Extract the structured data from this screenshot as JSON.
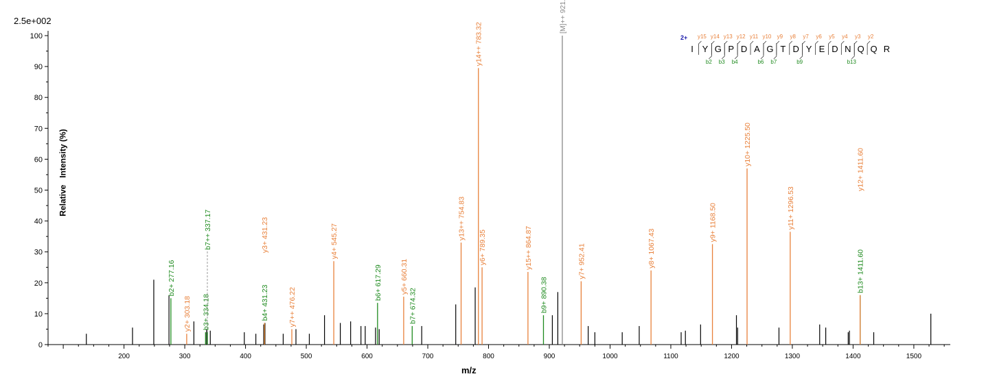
{
  "chart_data": {
    "type": "bar",
    "title": "",
    "scale_label": "2.5e+002",
    "xlabel": "m/z",
    "ylabel": "Relative   Intensity (%)",
    "xlim": [
      75,
      1560
    ],
    "ylim": [
      0,
      100
    ],
    "xticks": [
      200,
      300,
      400,
      500,
      600,
      700,
      800,
      900,
      1000,
      1100,
      1200,
      1300,
      1400,
      1500
    ],
    "yticks": [
      0,
      10,
      20,
      30,
      40,
      50,
      60,
      70,
      80,
      90,
      100
    ],
    "grid": false,
    "colors": {
      "y": "#E8803A",
      "b": "#1E8A1E",
      "precursor": "#888888",
      "other": "#000000",
      "charge": "#1A1AAA"
    },
    "peptide": {
      "charge": "2+",
      "sequence": [
        "I",
        "Y",
        "G",
        "P",
        "D",
        "A",
        "G",
        "T",
        "D",
        "Y",
        "E",
        "D",
        "N",
        "Q",
        "Q",
        "R"
      ],
      "y_ions": [
        "y15",
        "y14",
        "y13",
        "y12",
        "y11",
        "y10",
        "y9",
        "y8",
        "y7",
        "y6",
        "y5",
        "y4",
        "y3",
        "y2"
      ],
      "b_ions": [
        {
          "label": "b2",
          "pos": 2
        },
        {
          "label": "b3",
          "pos": 3
        },
        {
          "label": "b4",
          "pos": 4
        },
        {
          "label": "b6",
          "pos": 6
        },
        {
          "label": "b7",
          "pos": 7
        },
        {
          "label": "b9",
          "pos": 9
        },
        {
          "label": "b13",
          "pos": 13
        }
      ]
    },
    "annotated_peaks": [
      {
        "mz": 277.16,
        "intensity": 15,
        "label": "b2+ 277.16",
        "ion": "b"
      },
      {
        "mz": 303.18,
        "intensity": 3.5,
        "label": "y2+ 303.18",
        "ion": "y"
      },
      {
        "mz": 334.18,
        "intensity": 4,
        "label": "b3+ 334.18",
        "ion": "b"
      },
      {
        "mz": 337.17,
        "intensity": 4,
        "label": "b7++ 337.17",
        "ion": "b",
        "dashed": true,
        "label_top": 30
      },
      {
        "mz": 431.23,
        "intensity": 7,
        "label": "b4+ 431.23",
        "ion": "b"
      },
      {
        "mz": 431.23,
        "intensity": 7,
        "label": "y3+ 431.23",
        "ion": "y",
        "label_top": 29
      },
      {
        "mz": 476.22,
        "intensity": 5,
        "label": "y7++ 476.22",
        "ion": "y"
      },
      {
        "mz": 545.27,
        "intensity": 27,
        "label": "y4+ 545.27",
        "ion": "y"
      },
      {
        "mz": 617.29,
        "intensity": 13.5,
        "label": "b6+ 617.29",
        "ion": "b"
      },
      {
        "mz": 660.31,
        "intensity": 15.5,
        "label": "y5+ 660.31",
        "ion": "y"
      },
      {
        "mz": 674.32,
        "intensity": 6,
        "label": "b7+ 674.32",
        "ion": "b"
      },
      {
        "mz": 754.83,
        "intensity": 33,
        "label": "y13++ 754.83",
        "ion": "y"
      },
      {
        "mz": 783.32,
        "intensity": 89.5,
        "label": "y14++ 783.32",
        "ion": "y"
      },
      {
        "mz": 789.35,
        "intensity": 25,
        "label": "y6+ 789.35",
        "ion": "y"
      },
      {
        "mz": 864.87,
        "intensity": 23.5,
        "label": "y15++ 864.87",
        "ion": "y"
      },
      {
        "mz": 890.38,
        "intensity": 9.5,
        "label": "b9+ 890.38",
        "ion": "b"
      },
      {
        "mz": 921.41,
        "intensity": 100,
        "label": "[M]++ 921.41",
        "ion": "precursor"
      },
      {
        "mz": 952.41,
        "intensity": 20.5,
        "label": "y7+ 952.41",
        "ion": "y"
      },
      {
        "mz": 1067.43,
        "intensity": 24,
        "label": "y8+ 1067.43",
        "ion": "y"
      },
      {
        "mz": 1168.5,
        "intensity": 32.5,
        "label": "y9+ 1168.50",
        "ion": "y"
      },
      {
        "mz": 1225.5,
        "intensity": 57,
        "label": "y10+ 1225.50",
        "ion": "y"
      },
      {
        "mz": 1296.53,
        "intensity": 36.5,
        "label": "y11+ 1296.53",
        "ion": "y"
      },
      {
        "mz": 1411.6,
        "intensity": 16,
        "label": "b13+ 1411.60",
        "ion": "b"
      },
      {
        "mz": 1411.6,
        "intensity": 16,
        "label": "y12+ 1411.60",
        "ion": "y",
        "label_top": 49
      }
    ],
    "other_peaks": [
      [
        138,
        3.5
      ],
      [
        214,
        5.5
      ],
      [
        249,
        21
      ],
      [
        274,
        16
      ],
      [
        315,
        7.5
      ],
      [
        336,
        5
      ],
      [
        342,
        4.5
      ],
      [
        398,
        4
      ],
      [
        417,
        3.5
      ],
      [
        430,
        6.5
      ],
      [
        432,
        7
      ],
      [
        462,
        3.5
      ],
      [
        483,
        5
      ],
      [
        505,
        3.5
      ],
      [
        530,
        9.5
      ],
      [
        556,
        7
      ],
      [
        573,
        7.5
      ],
      [
        590,
        6
      ],
      [
        597,
        6
      ],
      [
        614,
        5.5
      ],
      [
        620,
        5
      ],
      [
        690,
        6
      ],
      [
        746,
        13
      ],
      [
        778,
        18.5
      ],
      [
        905,
        9.5
      ],
      [
        914,
        17
      ],
      [
        964,
        6
      ],
      [
        975,
        4
      ],
      [
        1020,
        4
      ],
      [
        1048,
        6
      ],
      [
        1117,
        4
      ],
      [
        1124,
        4.5
      ],
      [
        1149,
        6.5
      ],
      [
        1208,
        9.5
      ],
      [
        1210,
        5.5
      ],
      [
        1278,
        5.5
      ],
      [
        1345,
        6.5
      ],
      [
        1355,
        5.5
      ],
      [
        1392,
        4
      ],
      [
        1394,
        4.5
      ],
      [
        1434,
        4
      ],
      [
        1528,
        10
      ]
    ]
  }
}
